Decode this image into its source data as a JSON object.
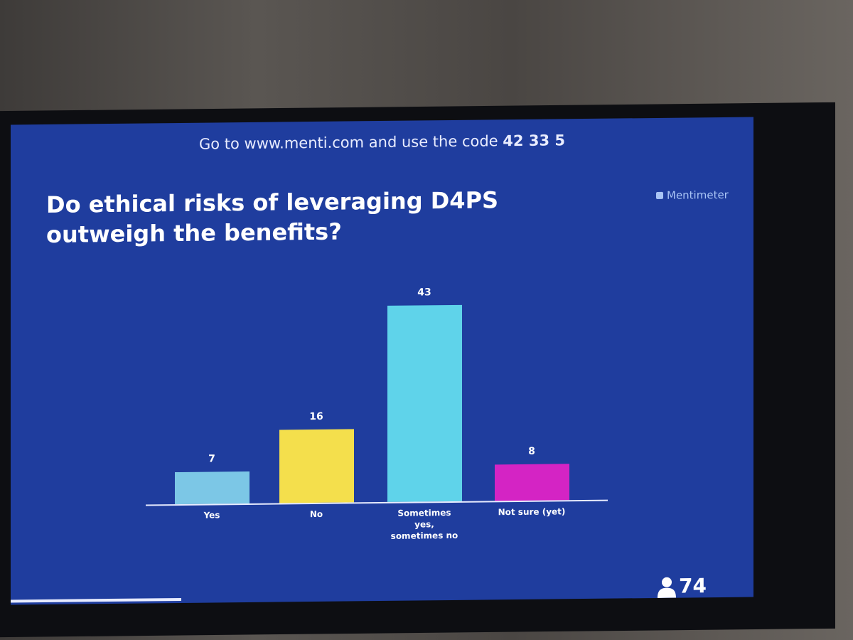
{
  "header": {
    "instruction": "Go to www.menti.com and use the code",
    "code": "42 33 5",
    "brand": "Mentimeter"
  },
  "chart_data": {
    "type": "bar",
    "title": "Do ethical risks of leveraging D4PS outweigh the benefits?",
    "categories": [
      "Yes",
      "No",
      "Sometimes yes, sometimes no",
      "Not sure (yet)"
    ],
    "values": [
      7,
      16,
      43,
      8
    ],
    "colors": [
      "#7cc7e6",
      "#f4df4c",
      "#5fd3ea",
      "#d424c4"
    ]
  },
  "footer": {
    "participants": 74
  }
}
